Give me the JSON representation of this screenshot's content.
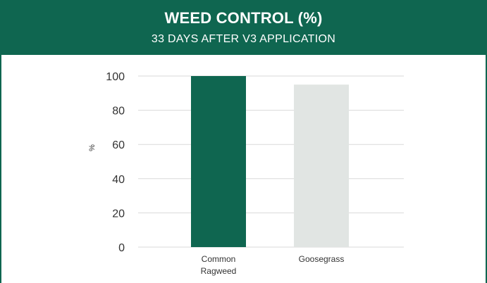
{
  "header": {
    "title": "WEED CONTROL (%)",
    "subtitle": "33 DAYS AFTER V3 APPLICATION"
  },
  "colors": {
    "header_bg": "#0f6650",
    "bar_primary": "#0f6650",
    "bar_secondary": "#e1e5e3",
    "grid": "#d9d9d9"
  },
  "chart_data": {
    "type": "bar",
    "title": "WEED CONTROL (%)",
    "subtitle": "33 DAYS AFTER V3 APPLICATION",
    "categories": [
      [
        "Common",
        "Ragweed"
      ],
      [
        "Goosegrass"
      ]
    ],
    "series": [
      {
        "values": [
          100,
          95
        ],
        "colors": [
          "#0f6650",
          "#e1e5e3"
        ]
      }
    ],
    "ylabel": "%",
    "xlabel": "",
    "ylim": [
      0,
      100
    ],
    "yticks": [
      0,
      20,
      40,
      60,
      80,
      100
    ],
    "grid": true,
    "legend": "none"
  }
}
